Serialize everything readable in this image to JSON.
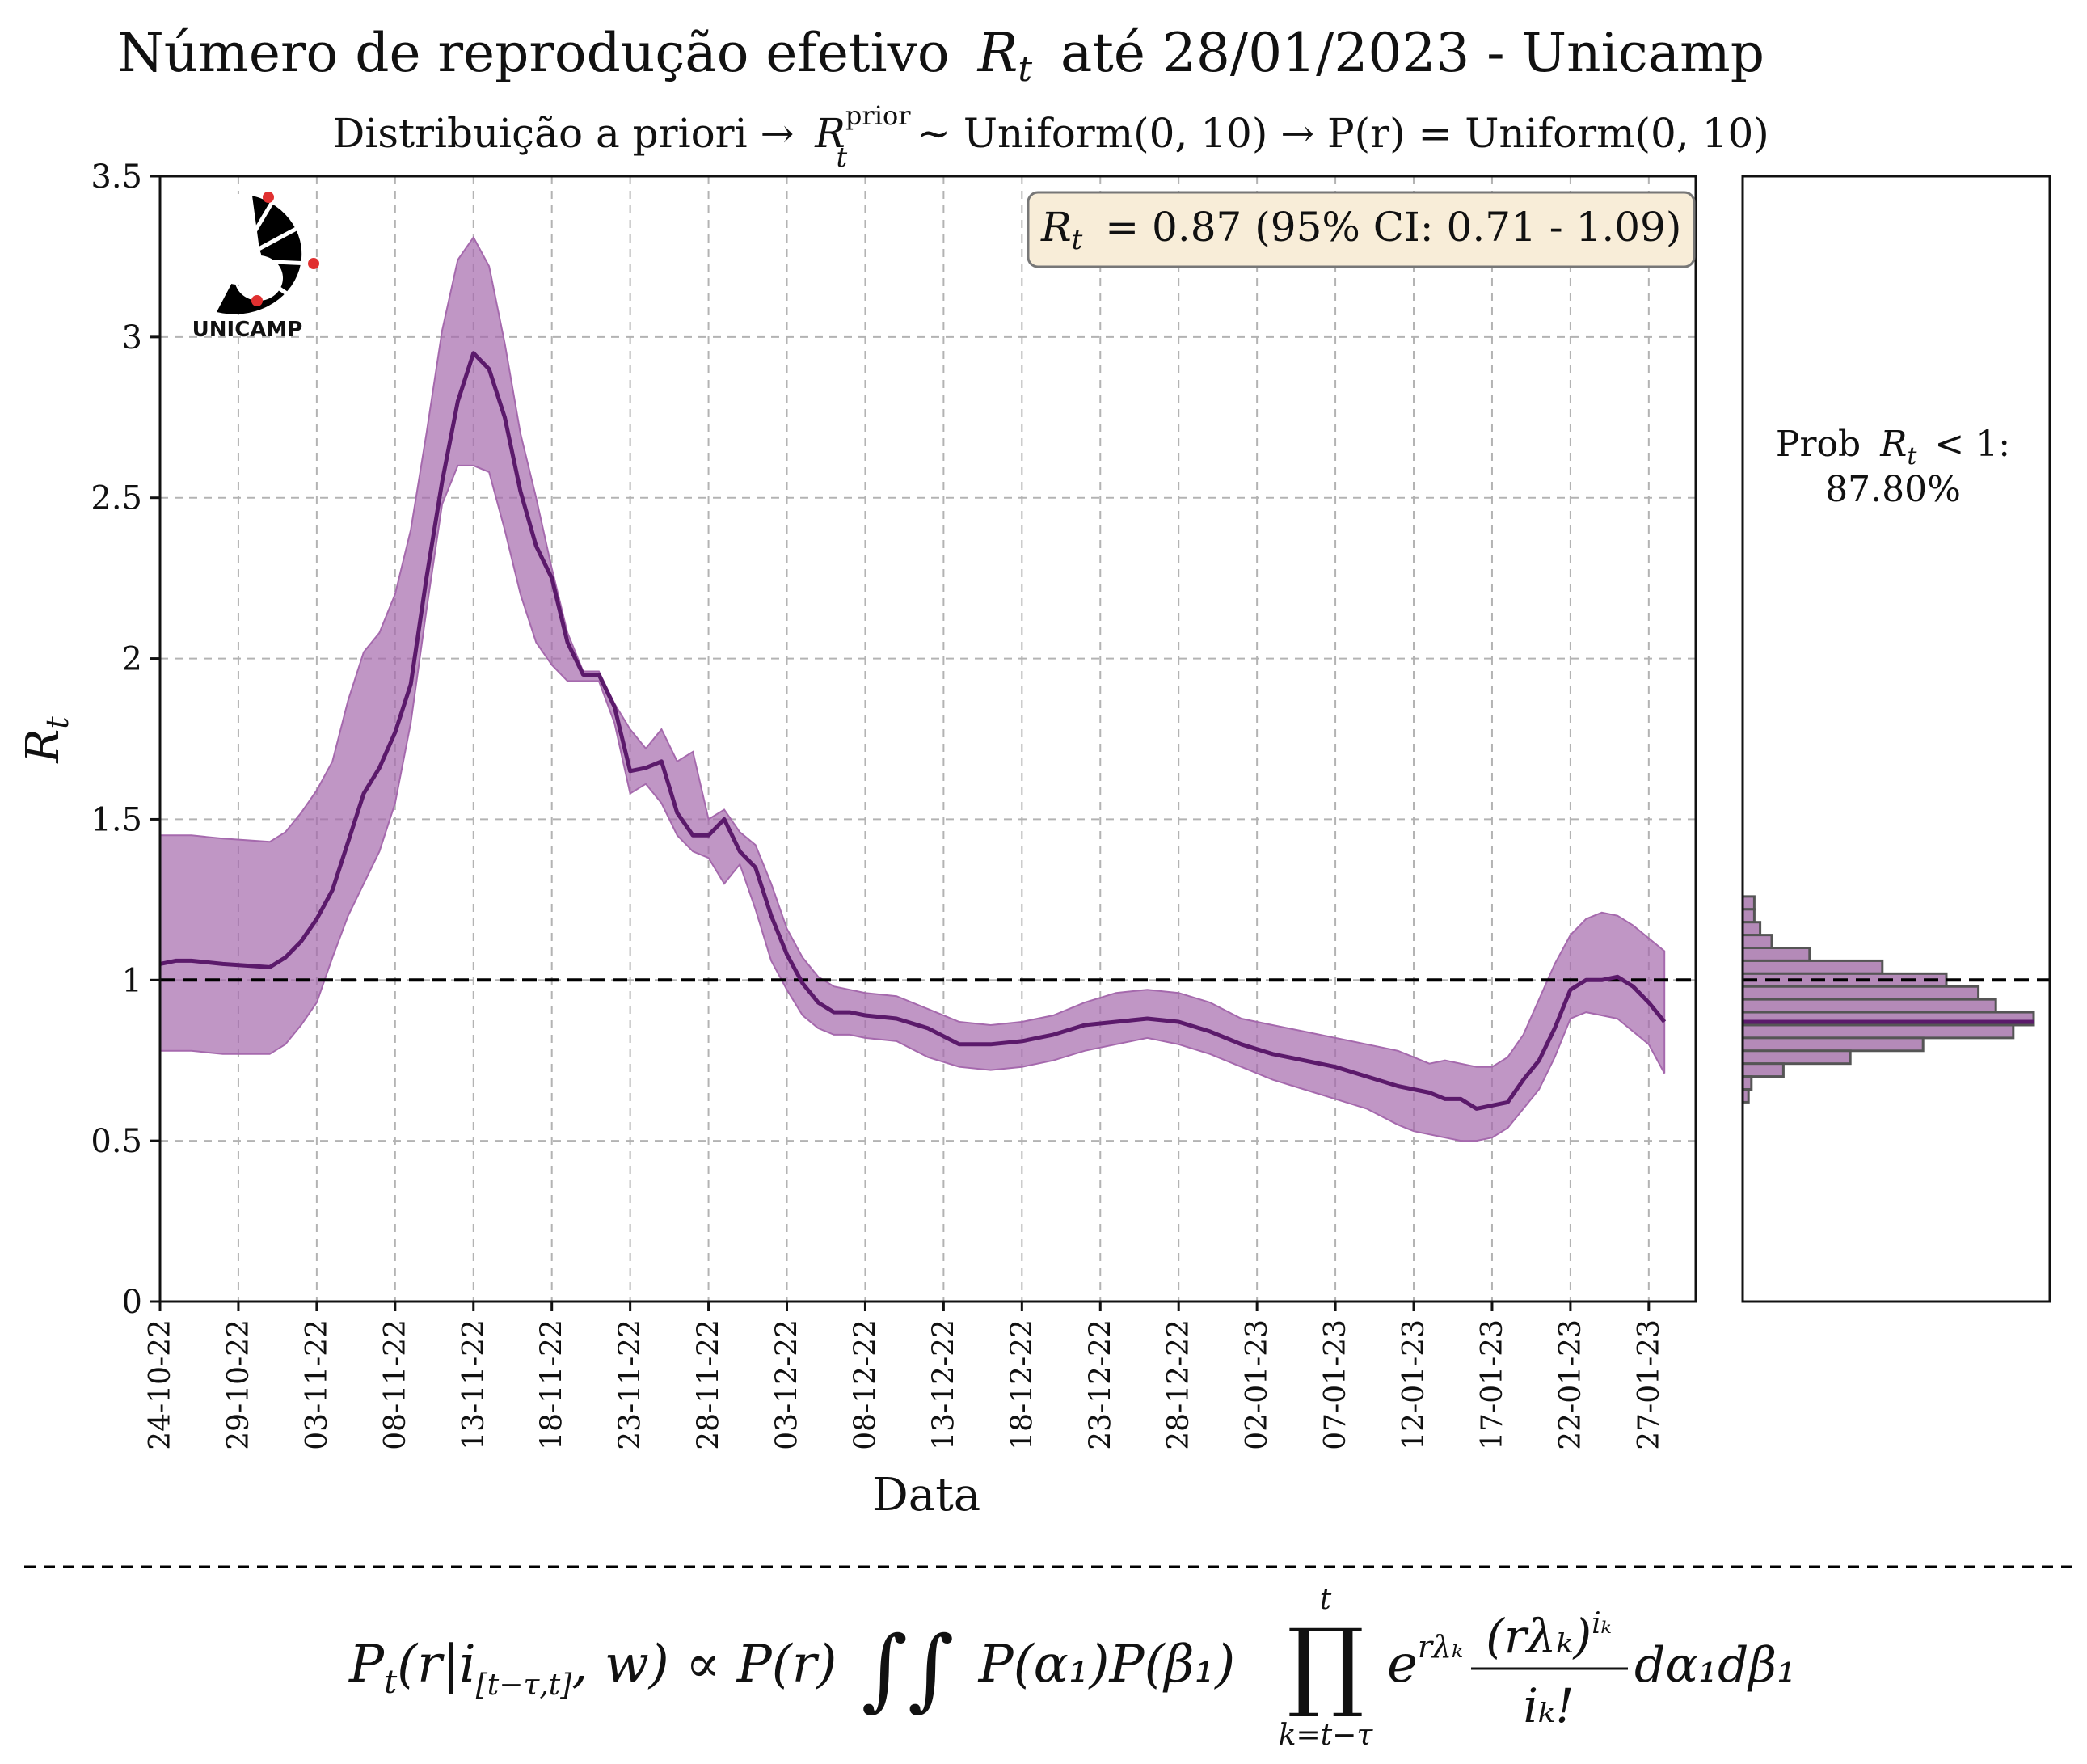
{
  "header": {
    "title_prefix": "Número de reprodução efetivo",
    "title_symbol": "R",
    "title_symbol_sub": "t",
    "title_suffix": "até 28/01/2023 - Unicamp",
    "subtitle_prefix": "Distribuição a priori →",
    "subtitle_symbol": "R",
    "subtitle_symbol_sup": "prior",
    "subtitle_symbol_sub": "t",
    "subtitle_suffix": "∼ Uniform(0, 10) → P(r) = Uniform(0, 10)"
  },
  "logo": {
    "text": "UNICAMP",
    "colors": {
      "mark": "#000000",
      "dots": "#e03030"
    }
  },
  "annotation": {
    "symbol": "R",
    "symbol_sub": "t",
    "text": "= 0.87 (95% CI: 0.71 - 1.09)",
    "box_fill": "#f8edd8",
    "box_stroke": "#777777"
  },
  "side_panel": {
    "prob_prefix": "Prob",
    "prob_symbol": "R",
    "prob_symbol_sub": "t",
    "prob_suffix": "< 1:",
    "prob_value": "87.80%"
  },
  "formula": {
    "lhs": "P",
    "lhs_sub": "t",
    "args": "(r|i",
    "args_sub": "[t−τ,t]",
    "args_end": ", w) ∝ P(r)",
    "integrals": "∫∫",
    "middle": "P(α₁)P(β₁)",
    "prod": "∏",
    "prod_top": "t",
    "prod_bottom": "k=t−τ",
    "exp_base": "e",
    "exp_power": "rλₖ",
    "numerator": "(rλₖ)",
    "numerator_power": "iₖ",
    "denominator": "iₖ!",
    "tail": "dα₁dβ₁"
  },
  "colors": {
    "line": "#5b1a6b",
    "band": "#a569ad",
    "band_opacity": 0.7,
    "grid": "#b3b3b3",
    "reference_line": "#000000",
    "hist_fill": "#b48ab8",
    "hist_stroke": "#555555"
  },
  "chart_data": {
    "type": "line",
    "xlabel": "Data",
    "ylabel": "R",
    "ylabel_sub": "t",
    "x_start": "2022-10-24",
    "x_end": "2023-01-28",
    "xlim": [
      "2022-10-24",
      "2023-01-30"
    ],
    "ylim": [
      0,
      3.5
    ],
    "yticks": [
      0,
      0.5,
      1,
      1.5,
      2,
      2.5,
      3,
      3.5
    ],
    "ytick_labels": [
      "0",
      "0.5",
      "1",
      "1.5",
      "2",
      "2.5",
      "3",
      "3.5"
    ],
    "xtick_dates": [
      "2022-10-24",
      "2022-10-29",
      "2022-11-03",
      "2022-11-08",
      "2022-11-13",
      "2022-11-18",
      "2022-11-23",
      "2022-11-28",
      "2022-12-03",
      "2022-12-08",
      "2022-12-13",
      "2022-12-18",
      "2022-12-23",
      "2022-12-28",
      "2023-01-02",
      "2023-01-07",
      "2023-01-12",
      "2023-01-17",
      "2023-01-22",
      "2023-01-27"
    ],
    "xtick_labels": [
      "24-10-22",
      "29-10-22",
      "03-11-22",
      "08-11-22",
      "13-11-22",
      "18-11-22",
      "23-11-22",
      "28-11-22",
      "03-12-22",
      "08-12-22",
      "13-12-22",
      "18-12-22",
      "23-12-22",
      "28-12-22",
      "02-01-23",
      "07-01-23",
      "12-01-23",
      "17-01-23",
      "22-01-23",
      "27-01-23"
    ],
    "grid": true,
    "reference_line": 1,
    "series": [
      {
        "type": "line",
        "x": [
          "2022-10-24",
          "2022-10-25",
          "2022-10-26",
          "2022-10-28",
          "2022-10-31",
          "2022-11-01",
          "2022-11-02",
          "2022-11-03",
          "2022-11-04",
          "2022-11-05",
          "2022-11-06",
          "2022-11-07",
          "2022-11-08",
          "2022-11-09",
          "2022-11-10",
          "2022-11-11",
          "2022-11-12",
          "2022-11-13",
          "2022-11-14",
          "2022-11-15",
          "2022-11-16",
          "2022-11-17",
          "2022-11-18",
          "2022-11-19",
          "2022-11-20",
          "2022-11-21",
          "2022-11-22",
          "2022-11-23",
          "2022-11-24",
          "2022-11-25",
          "2022-11-26",
          "2022-11-27",
          "2022-11-28",
          "2022-11-29",
          "2022-11-30",
          "2022-12-01",
          "2022-12-02",
          "2022-12-03",
          "2022-12-04",
          "2022-12-05",
          "2022-12-06",
          "2022-12-07",
          "2022-12-08",
          "2022-12-10",
          "2022-12-12",
          "2022-12-14",
          "2022-12-16",
          "2022-12-18",
          "2022-12-20",
          "2022-12-22",
          "2022-12-24",
          "2022-12-26",
          "2022-12-28",
          "2022-12-30",
          "2023-01-01",
          "2023-01-03",
          "2023-01-05",
          "2023-01-07",
          "2023-01-09",
          "2023-01-11",
          "2023-01-12",
          "2023-01-13",
          "2023-01-14",
          "2023-01-15",
          "2023-01-16",
          "2023-01-17",
          "2023-01-18",
          "2023-01-19",
          "2023-01-20",
          "2023-01-21",
          "2023-01-22",
          "2023-01-23",
          "2023-01-24",
          "2023-01-25",
          "2023-01-26",
          "2023-01-27",
          "2023-01-28"
        ],
        "y": [
          1.05,
          1.06,
          1.06,
          1.05,
          1.04,
          1.07,
          1.12,
          1.19,
          1.28,
          1.43,
          1.58,
          1.66,
          1.77,
          1.92,
          2.25,
          2.55,
          2.8,
          2.95,
          2.9,
          2.75,
          2.52,
          2.35,
          2.25,
          2.05,
          1.95,
          1.95,
          1.85,
          1.65,
          1.66,
          1.68,
          1.52,
          1.45,
          1.45,
          1.5,
          1.4,
          1.35,
          1.2,
          1.08,
          0.99,
          0.93,
          0.9,
          0.9,
          0.89,
          0.88,
          0.85,
          0.8,
          0.8,
          0.81,
          0.83,
          0.86,
          0.87,
          0.88,
          0.87,
          0.84,
          0.8,
          0.77,
          0.75,
          0.73,
          0.7,
          0.67,
          0.66,
          0.65,
          0.63,
          0.63,
          0.6,
          0.61,
          0.62,
          0.69,
          0.75,
          0.85,
          0.97,
          1.0,
          1.0,
          1.01,
          0.98,
          0.93,
          0.87
        ]
      },
      {
        "type": "band",
        "x": [
          "2022-10-24",
          "2022-10-25",
          "2022-10-26",
          "2022-10-28",
          "2022-10-31",
          "2022-11-01",
          "2022-11-02",
          "2022-11-03",
          "2022-11-04",
          "2022-11-05",
          "2022-11-06",
          "2022-11-07",
          "2022-11-08",
          "2022-11-09",
          "2022-11-10",
          "2022-11-11",
          "2022-11-12",
          "2022-11-13",
          "2022-11-14",
          "2022-11-15",
          "2022-11-16",
          "2022-11-17",
          "2022-11-18",
          "2022-11-19",
          "2022-11-20",
          "2022-11-21",
          "2022-11-22",
          "2022-11-23",
          "2022-11-24",
          "2022-11-25",
          "2022-11-26",
          "2022-11-27",
          "2022-11-28",
          "2022-11-29",
          "2022-11-30",
          "2022-12-01",
          "2022-12-02",
          "2022-12-03",
          "2022-12-04",
          "2022-12-05",
          "2022-12-06",
          "2022-12-07",
          "2022-12-08",
          "2022-12-10",
          "2022-12-12",
          "2022-12-14",
          "2022-12-16",
          "2022-12-18",
          "2022-12-20",
          "2022-12-22",
          "2022-12-24",
          "2022-12-26",
          "2022-12-28",
          "2022-12-30",
          "2023-01-01",
          "2023-01-03",
          "2023-01-05",
          "2023-01-07",
          "2023-01-09",
          "2023-01-11",
          "2023-01-12",
          "2023-01-13",
          "2023-01-14",
          "2023-01-15",
          "2023-01-16",
          "2023-01-17",
          "2023-01-18",
          "2023-01-19",
          "2023-01-20",
          "2023-01-21",
          "2023-01-22",
          "2023-01-23",
          "2023-01-24",
          "2023-01-25",
          "2023-01-26",
          "2023-01-27",
          "2023-01-28"
        ],
        "lower": [
          0.78,
          0.78,
          0.78,
          0.77,
          0.77,
          0.8,
          0.86,
          0.93,
          1.07,
          1.2,
          1.3,
          1.4,
          1.55,
          1.8,
          2.15,
          2.48,
          2.6,
          2.6,
          2.58,
          2.4,
          2.2,
          2.05,
          1.98,
          1.93,
          1.93,
          1.93,
          1.8,
          1.58,
          1.61,
          1.55,
          1.45,
          1.4,
          1.38,
          1.3,
          1.36,
          1.22,
          1.06,
          0.97,
          0.89,
          0.85,
          0.83,
          0.83,
          0.82,
          0.81,
          0.76,
          0.73,
          0.72,
          0.73,
          0.75,
          0.78,
          0.8,
          0.82,
          0.8,
          0.77,
          0.73,
          0.69,
          0.66,
          0.63,
          0.6,
          0.55,
          0.53,
          0.52,
          0.51,
          0.5,
          0.5,
          0.51,
          0.54,
          0.6,
          0.66,
          0.76,
          0.88,
          0.9,
          0.89,
          0.88,
          0.84,
          0.8,
          0.71
        ],
        "upper": [
          1.45,
          1.45,
          1.45,
          1.44,
          1.43,
          1.46,
          1.52,
          1.59,
          1.68,
          1.87,
          2.02,
          2.08,
          2.2,
          2.4,
          2.7,
          3.02,
          3.24,
          3.31,
          3.22,
          2.98,
          2.7,
          2.5,
          2.28,
          2.08,
          1.96,
          1.96,
          1.86,
          1.78,
          1.72,
          1.78,
          1.68,
          1.71,
          1.5,
          1.53,
          1.46,
          1.42,
          1.3,
          1.16,
          1.07,
          1.01,
          0.98,
          0.97,
          0.96,
          0.95,
          0.91,
          0.87,
          0.86,
          0.87,
          0.89,
          0.93,
          0.96,
          0.97,
          0.96,
          0.93,
          0.88,
          0.86,
          0.84,
          0.82,
          0.8,
          0.78,
          0.76,
          0.74,
          0.75,
          0.74,
          0.73,
          0.73,
          0.76,
          0.83,
          0.94,
          1.05,
          1.14,
          1.19,
          1.21,
          1.2,
          1.17,
          1.13,
          1.09
        ]
      }
    ],
    "histogram": {
      "type": "bar",
      "orientation": "horizontal",
      "bins": [
        {
          "r": 1.24,
          "height": 0.04
        },
        {
          "r": 1.2,
          "height": 0.04
        },
        {
          "r": 1.16,
          "height": 0.06
        },
        {
          "r": 1.12,
          "height": 0.1
        },
        {
          "r": 1.08,
          "height": 0.23
        },
        {
          "r": 1.04,
          "height": 0.48
        },
        {
          "r": 1.0,
          "height": 0.7
        },
        {
          "r": 0.96,
          "height": 0.81
        },
        {
          "r": 0.92,
          "height": 0.87
        },
        {
          "r": 0.88,
          "height": 1.0
        },
        {
          "r": 0.84,
          "height": 0.93
        },
        {
          "r": 0.8,
          "height": 0.62
        },
        {
          "r": 0.76,
          "height": 0.37
        },
        {
          "r": 0.72,
          "height": 0.14
        },
        {
          "r": 0.68,
          "height": 0.03
        },
        {
          "r": 0.64,
          "height": 0.02
        }
      ],
      "median": 0.87,
      "reference_line": 1
    }
  }
}
